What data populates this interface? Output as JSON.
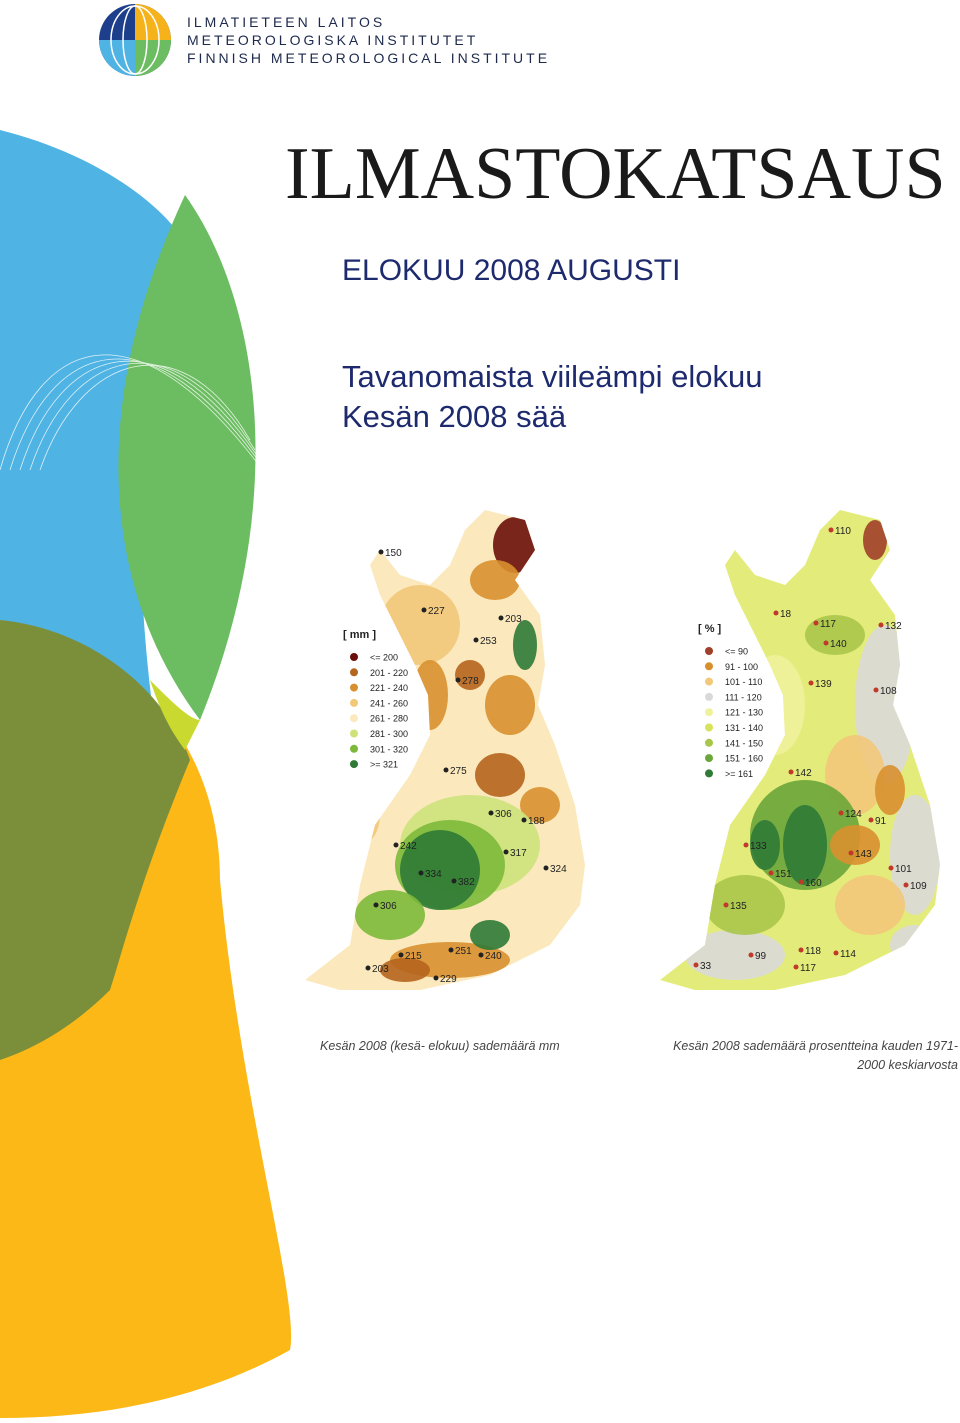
{
  "header": {
    "org_lines": [
      "ILMATIETEEN LAITOS",
      "METEOROLOGISKA INSTITUTET",
      "FINNISH METEOROLOGICAL INSTITUTE"
    ]
  },
  "title": "ILMASTOKATSAUS",
  "subtitle": "ELOKUU 2008 AUGUSTI",
  "headlines": [
    "Tavanomaista viileämpi elokuu",
    "Kesän 2008 sää"
  ],
  "maps": [
    {
      "legend_title": "[ mm ]",
      "legend": [
        {
          "label": "<= 200",
          "color": "#6b0f0a"
        },
        {
          "label": "201 - 220",
          "color": "#b5651d"
        },
        {
          "label": "221 - 240",
          "color": "#d8902f"
        },
        {
          "label": "241 - 260",
          "color": "#f2c879"
        },
        {
          "label": "261 - 280",
          "color": "#fbe9bd"
        },
        {
          "label": "281 - 300",
          "color": "#cde27a"
        },
        {
          "label": "301 - 320",
          "color": "#7cb93a"
        },
        {
          "label": ">= 321",
          "color": "#2f7a36"
        }
      ],
      "stations": [
        150,
        227,
        203,
        253,
        278,
        275,
        306,
        188,
        242,
        317,
        334,
        382,
        324,
        306,
        215,
        251,
        240,
        203,
        229
      ],
      "caption": [
        "Kesän 2008 (kesä- elokuu) sademäärä mm"
      ]
    },
    {
      "legend_title": "[ % ]",
      "legend": [
        {
          "label": "<= 90",
          "color": "#a0402a"
        },
        {
          "label": "91 - 100",
          "color": "#d8902f"
        },
        {
          "label": "101 - 110",
          "color": "#f2c879"
        },
        {
          "label": "111 - 120",
          "color": "#d9d9d9"
        },
        {
          "label": "121 - 130",
          "color": "#eef29a"
        },
        {
          "label": "131 - 140",
          "color": "#d7e35a"
        },
        {
          "label": "141 - 150",
          "color": "#a8c64a"
        },
        {
          "label": "151 - 160",
          "color": "#6aa63a"
        },
        {
          "label": ">= 161",
          "color": "#2f7a36"
        }
      ],
      "stations": [
        110,
        18,
        117,
        132,
        140,
        139,
        108,
        142,
        124,
        91,
        133,
        143,
        151,
        160,
        101,
        109,
        135,
        99,
        118,
        114,
        117,
        33
      ],
      "caption": [
        "Kesän 2008 sademäärä prosentteina kauden 1971-",
        "2000 keskiarvosta"
      ]
    }
  ]
}
